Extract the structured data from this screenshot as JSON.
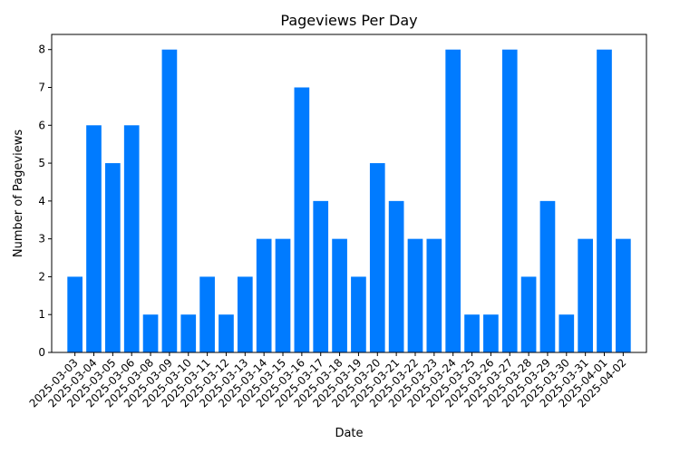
{
  "chart_data": {
    "type": "bar",
    "title": "Pageviews Per Day",
    "xlabel": "Date",
    "ylabel": "Number of Pageviews",
    "ylim": [
      0,
      8.4
    ],
    "yticks": [
      0,
      1,
      2,
      3,
      4,
      5,
      6,
      7,
      8
    ],
    "bar_color": "#007bff",
    "categories": [
      "2025-03-03",
      "2025-03-04",
      "2025-03-05",
      "2025-03-06",
      "2025-03-08",
      "2025-03-09",
      "2025-03-10",
      "2025-03-11",
      "2025-03-12",
      "2025-03-13",
      "2025-03-14",
      "2025-03-15",
      "2025-03-16",
      "2025-03-17",
      "2025-03-18",
      "2025-03-19",
      "2025-03-20",
      "2025-03-21",
      "2025-03-22",
      "2025-03-23",
      "2025-03-24",
      "2025-03-25",
      "2025-03-26",
      "2025-03-27",
      "2025-03-28",
      "2025-03-29",
      "2025-03-30",
      "2025-03-31",
      "2025-04-01",
      "2025-04-02"
    ],
    "values": [
      2,
      6,
      5,
      6,
      1,
      8,
      1,
      2,
      1,
      2,
      3,
      3,
      7,
      4,
      3,
      2,
      5,
      4,
      3,
      3,
      8,
      1,
      1,
      8,
      2,
      4,
      1,
      3,
      8,
      3
    ]
  }
}
